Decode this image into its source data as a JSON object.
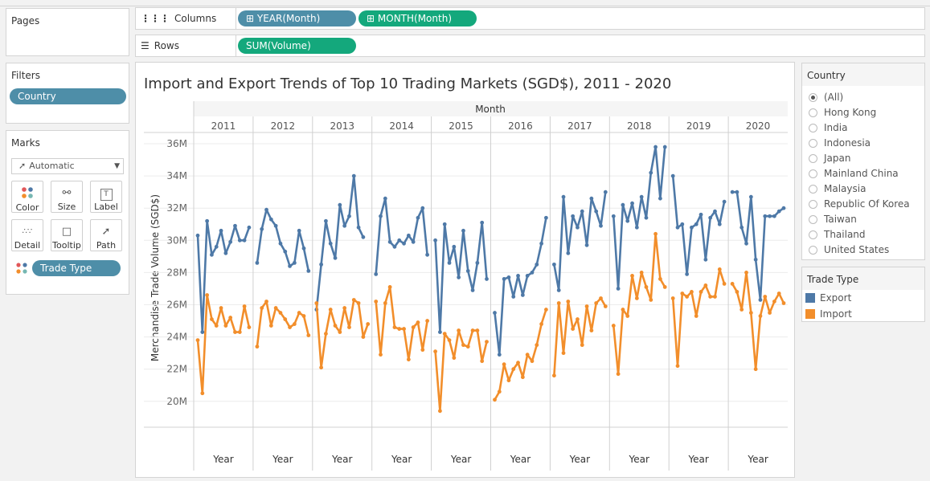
{
  "pages_panel": {
    "title": "Pages"
  },
  "shelves": {
    "columns_label": "Columns",
    "columns_pills": [
      "YEAR(Month)",
      "MONTH(Month)"
    ],
    "rows_label": "Rows",
    "rows_pills": [
      "SUM(Volume)"
    ]
  },
  "filters": {
    "title": "Filters",
    "pills": [
      "Country"
    ]
  },
  "marks": {
    "title": "Marks",
    "type": "Automatic",
    "buttons": [
      "Color",
      "Size",
      "Label",
      "Detail",
      "Tooltip",
      "Path"
    ],
    "pill": "Trade Type"
  },
  "country_legend": {
    "title": "Country",
    "options": [
      "(All)",
      "Hong Kong",
      "India",
      "Indonesia",
      "Japan",
      "Mainland China",
      "Malaysia",
      "Republic Of Korea",
      "Taiwan",
      "Thailand",
      "United States"
    ],
    "selected": "(All)"
  },
  "trade_legend": {
    "title": "Trade Type",
    "items": [
      {
        "name": "Export",
        "color": "#4e79a7"
      },
      {
        "name": "Import",
        "color": "#f28e2b"
      }
    ]
  },
  "colors": {
    "export": "#4e79a7",
    "import": "#f28e2b",
    "pill_blue": "#4e8ea8",
    "pill_green": "#14a87c"
  },
  "chart_data": {
    "type": "line",
    "title": "Import and Export Trends of Top 10 Trading Markets (SGD$), 2011 - 2020",
    "column_header": "Month",
    "years": [
      "2011",
      "2012",
      "2013",
      "2014",
      "2015",
      "2016",
      "2017",
      "2018",
      "2019",
      "2020"
    ],
    "x_footer": "Year",
    "ylabel": "Merchandise Trade Volume (SGD$)",
    "y_ticks": [
      "20M",
      "22M",
      "24M",
      "26M",
      "28M",
      "30M",
      "32M",
      "34M",
      "36M"
    ],
    "y_tick_values": [
      20,
      22,
      24,
      26,
      28,
      30,
      32,
      34,
      36
    ],
    "ylim": [
      19,
      37
    ],
    "y_unit": "M SGD$",
    "series": [
      {
        "name": "Export",
        "color": "#4e79a7",
        "values": [
          [
            30.3,
            24.3,
            31.2,
            29.1,
            29.6,
            30.6,
            29.2,
            29.9,
            30.9,
            30.0,
            30.0,
            30.8
          ],
          [
            28.6,
            30.7,
            31.9,
            31.3,
            30.9,
            29.8,
            29.3,
            28.4,
            28.6,
            30.6,
            29.5,
            28.1
          ],
          [
            25.7,
            28.5,
            31.2,
            29.8,
            28.9,
            32.2,
            30.9,
            31.5,
            34.0,
            30.8,
            30.2,
            null
          ],
          [
            27.9,
            31.5,
            32.6,
            29.9,
            29.6,
            30.0,
            29.8,
            30.3,
            29.9,
            31.4,
            32.0,
            29.1
          ],
          [
            30.0,
            24.3,
            31.0,
            28.6,
            29.6,
            27.7,
            30.6,
            28.1,
            26.9,
            28.6,
            31.1,
            27.6
          ],
          [
            25.5,
            22.9,
            27.6,
            27.7,
            26.5,
            27.8,
            26.6,
            27.8,
            28.0,
            28.5,
            29.8,
            31.4
          ],
          [
            28.5,
            26.9,
            32.7,
            29.2,
            31.5,
            30.8,
            31.8,
            29.7,
            32.6,
            31.8,
            30.9,
            33.0
          ],
          [
            31.5,
            27.0,
            32.2,
            31.2,
            32.3,
            30.8,
            32.7,
            31.4,
            34.2,
            35.8,
            32.6,
            35.8
          ],
          [
            34.0,
            30.8,
            31.0,
            27.9,
            30.8,
            31.0,
            31.6,
            28.8,
            31.4,
            31.8,
            31.0,
            32.4
          ],
          [
            33.0,
            33.0,
            30.8,
            29.8,
            32.7,
            28.8,
            26.3,
            31.5,
            31.5,
            31.5,
            31.8,
            32.0
          ]
        ]
      },
      {
        "name": "Import",
        "color": "#f28e2b",
        "values": [
          [
            23.8,
            20.5,
            26.6,
            25.1,
            24.7,
            25.8,
            24.7,
            25.2,
            24.3,
            24.3,
            25.9,
            24.6
          ],
          [
            23.4,
            25.8,
            26.2,
            24.7,
            25.8,
            25.5,
            25.1,
            24.6,
            24.8,
            25.5,
            25.3,
            24.1
          ],
          [
            26.1,
            22.1,
            24.2,
            25.7,
            24.7,
            24.3,
            25.8,
            24.6,
            26.3,
            26.1,
            24.0,
            24.8
          ],
          [
            26.2,
            22.9,
            26.1,
            27.1,
            24.6,
            24.5,
            24.5,
            22.6,
            24.6,
            24.9,
            23.2,
            25.0
          ],
          [
            23.1,
            19.4,
            24.2,
            23.8,
            22.7,
            24.4,
            23.5,
            23.4,
            24.4,
            24.4,
            22.5,
            23.7
          ],
          [
            20.1,
            20.6,
            22.3,
            21.3,
            22.0,
            22.4,
            21.5,
            22.9,
            22.5,
            23.5,
            24.8,
            25.7
          ],
          [
            21.6,
            26.1,
            23.0,
            26.2,
            24.5,
            25.1,
            23.5,
            25.9,
            24.4,
            26.1,
            26.4,
            25.9
          ],
          [
            24.7,
            21.7,
            25.7,
            25.3,
            27.8,
            26.4,
            28.0,
            27.1,
            26.3,
            30.4,
            27.6,
            27.1
          ],
          [
            26.4,
            22.2,
            26.7,
            26.5,
            26.8,
            25.3,
            26.8,
            27.2,
            26.5,
            26.5,
            28.2,
            27.3
          ],
          [
            27.3,
            26.8,
            25.7,
            28.0,
            25.5,
            22.0,
            25.3,
            26.5,
            25.5,
            26.2,
            26.7,
            26.1
          ]
        ]
      }
    ]
  }
}
